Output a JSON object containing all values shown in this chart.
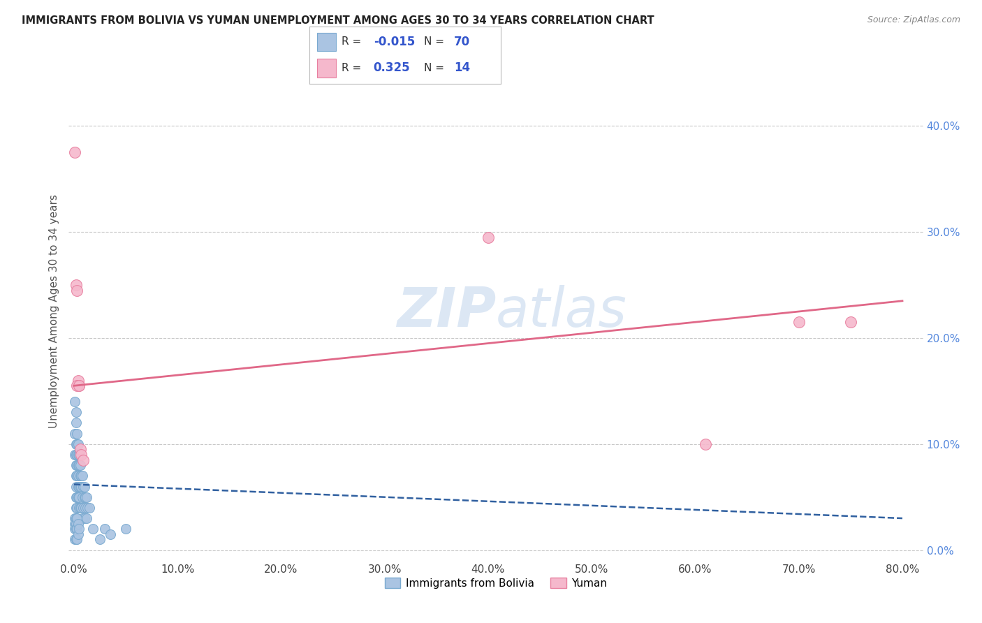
{
  "title": "IMMIGRANTS FROM BOLIVIA VS YUMAN UNEMPLOYMENT AMONG AGES 30 TO 34 YEARS CORRELATION CHART",
  "source": "Source: ZipAtlas.com",
  "ylabel": "Unemployment Among Ages 30 to 34 years",
  "legend_label_blue": "Immigrants from Bolivia",
  "legend_label_pink": "Yuman",
  "R_blue": -0.015,
  "N_blue": 70,
  "R_pink": 0.325,
  "N_pink": 14,
  "xlim": [
    -0.005,
    0.82
  ],
  "ylim": [
    -0.01,
    0.46
  ],
  "xticks": [
    0.0,
    0.1,
    0.2,
    0.3,
    0.4,
    0.5,
    0.6,
    0.7,
    0.8
  ],
  "yticks": [
    0.0,
    0.1,
    0.2,
    0.3,
    0.4
  ],
  "blue_scatter_x": [
    0.001,
    0.001,
    0.001,
    0.002,
    0.002,
    0.002,
    0.002,
    0.002,
    0.002,
    0.002,
    0.002,
    0.002,
    0.003,
    0.003,
    0.003,
    0.003,
    0.003,
    0.003,
    0.003,
    0.004,
    0.004,
    0.004,
    0.004,
    0.004,
    0.004,
    0.005,
    0.005,
    0.005,
    0.005,
    0.005,
    0.006,
    0.006,
    0.006,
    0.006,
    0.007,
    0.007,
    0.007,
    0.008,
    0.008,
    0.008,
    0.009,
    0.009,
    0.01,
    0.01,
    0.01,
    0.011,
    0.011,
    0.012,
    0.012,
    0.013,
    0.001,
    0.001,
    0.001,
    0.001,
    0.002,
    0.002,
    0.002,
    0.002,
    0.003,
    0.003,
    0.003,
    0.004,
    0.004,
    0.005,
    0.015,
    0.018,
    0.025,
    0.03,
    0.035,
    0.05
  ],
  "blue_scatter_y": [
    0.14,
    0.11,
    0.09,
    0.13,
    0.12,
    0.1,
    0.09,
    0.08,
    0.07,
    0.06,
    0.05,
    0.04,
    0.11,
    0.1,
    0.09,
    0.08,
    0.07,
    0.05,
    0.04,
    0.1,
    0.09,
    0.08,
    0.07,
    0.06,
    0.05,
    0.09,
    0.08,
    0.06,
    0.05,
    0.04,
    0.08,
    0.07,
    0.06,
    0.04,
    0.07,
    0.06,
    0.04,
    0.07,
    0.05,
    0.03,
    0.06,
    0.04,
    0.06,
    0.05,
    0.03,
    0.05,
    0.04,
    0.05,
    0.03,
    0.04,
    0.03,
    0.025,
    0.02,
    0.01,
    0.03,
    0.025,
    0.02,
    0.01,
    0.03,
    0.02,
    0.01,
    0.025,
    0.015,
    0.02,
    0.04,
    0.02,
    0.01,
    0.02,
    0.015,
    0.02
  ],
  "pink_scatter_x": [
    0.001,
    0.002,
    0.003,
    0.004,
    0.005,
    0.006,
    0.007,
    0.009,
    0.003,
    0.005,
    0.4,
    0.61,
    0.7,
    0.75
  ],
  "pink_scatter_y": [
    0.375,
    0.25,
    0.245,
    0.16,
    0.155,
    0.095,
    0.09,
    0.085,
    0.155,
    0.155,
    0.295,
    0.1,
    0.215,
    0.215
  ],
  "blue_color": "#aac4e2",
  "blue_edge_color": "#7aaad0",
  "pink_color": "#f5b8cc",
  "pink_edge_color": "#e880a0",
  "blue_line_color": "#3060a0",
  "pink_line_color": "#e06888",
  "watermark_color": "#c5d8ee",
  "background_color": "#ffffff",
  "grid_color": "#c8c8c8",
  "pink_line_y0": 0.155,
  "pink_line_y1": 0.235,
  "blue_line_y0": 0.062,
  "blue_line_y1": 0.03
}
